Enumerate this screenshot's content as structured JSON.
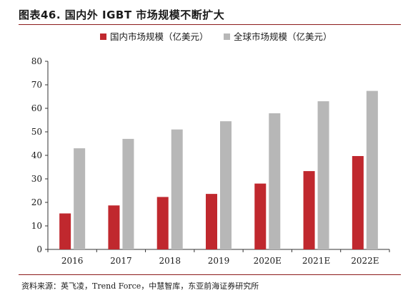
{
  "header": {
    "title": "图表46. 国内外 IGBT 市场规模不断扩大"
  },
  "footer": {
    "source": "资料来源：英飞凌，Trend Force，中慧智库，东亚前海证券研究所"
  },
  "colors": {
    "domestic": "#C0282E",
    "global": "#B7B7B7",
    "rule": "#8B1A1A"
  },
  "chart_data": {
    "type": "bar",
    "categories": [
      "2016",
      "2017",
      "2018",
      "2019",
      "2020E",
      "2021E",
      "2022E"
    ],
    "series": [
      {
        "name": "国内市场规模（亿美元）",
        "values": [
          15.3,
          18.7,
          22.3,
          23.6,
          28.0,
          33.3,
          39.7
        ]
      },
      {
        "name": "全球市场规模（亿美元）",
        "values": [
          43.0,
          47.0,
          51.0,
          54.5,
          57.9,
          63.0,
          67.4
        ]
      }
    ],
    "ylim": [
      0,
      80
    ],
    "yticks": [
      0,
      10,
      20,
      30,
      40,
      50,
      60,
      70,
      80
    ],
    "legend": "top",
    "grid": false
  }
}
